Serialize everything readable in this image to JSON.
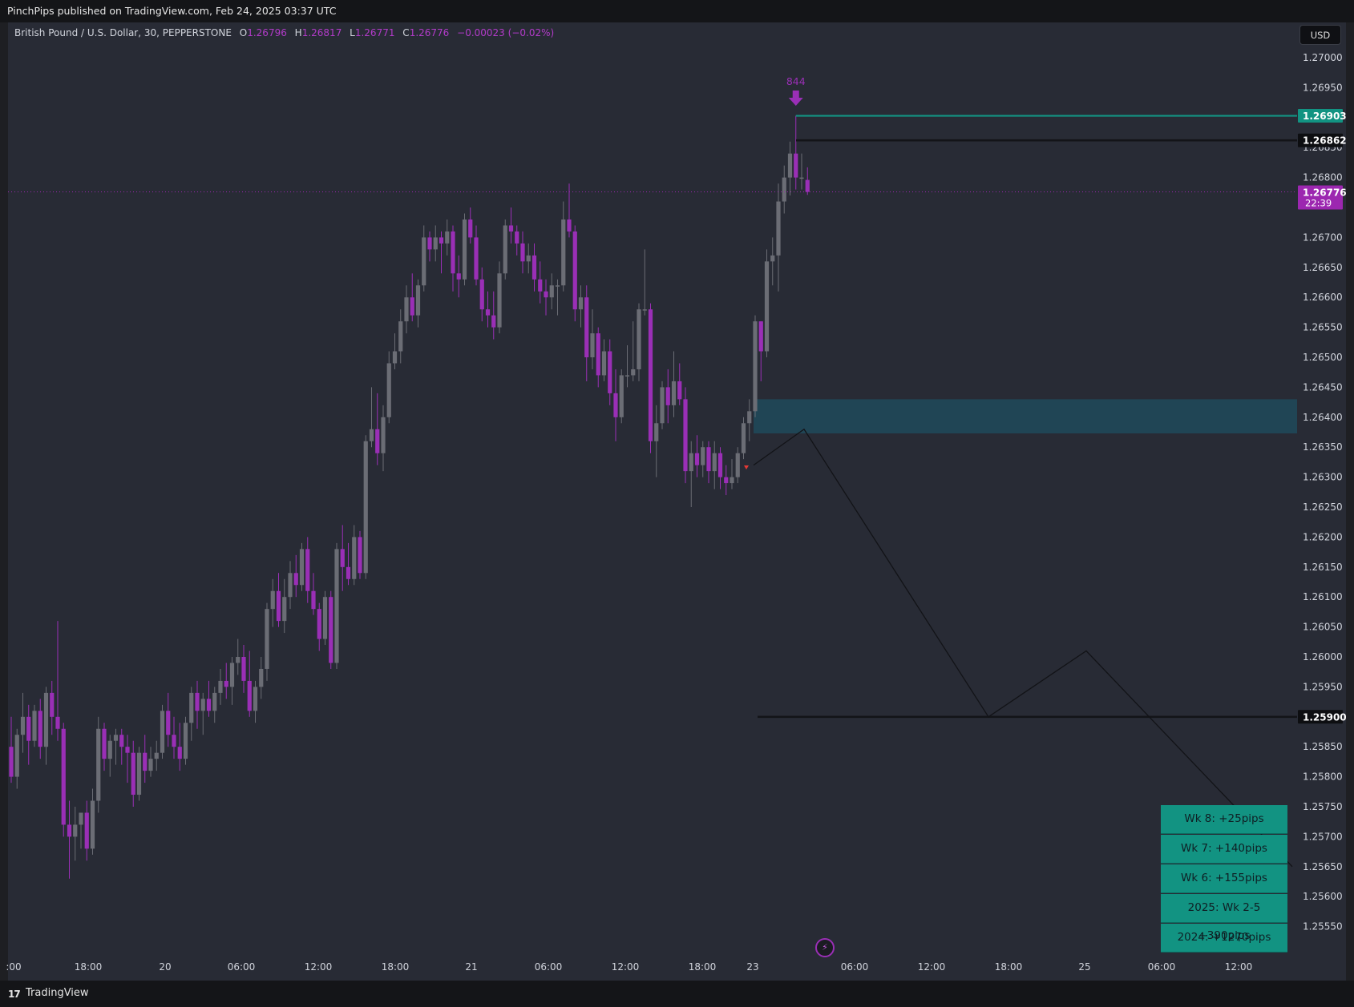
{
  "header": {
    "published": "PinchPips published on TradingView.com, Feb 24, 2025 03:37 UTC"
  },
  "symbol": {
    "name": "British Pound / U.S. Dollar, 30, PEPPERSTONE",
    "o_label": "O",
    "o": "1.26796",
    "h_label": "H",
    "h": "1.26817",
    "l_label": "L",
    "l": "1.26771",
    "c_label": "C",
    "c": "1.26776",
    "change": "−0.00023 (−0.02%)"
  },
  "currency_button": "USD",
  "footer": {
    "brand": "TradingView",
    "logo_glyph": "17"
  },
  "bolt_icon": "lightning-icon",
  "stats": [
    "Wk 8: +25pips",
    "Wk 7: +140pips",
    "Wk 6: +155pips",
    "2025: Wk 2-5  +390pips",
    "2024: +1270pips"
  ],
  "colors": {
    "bull": "#6b6d75",
    "bear": "#9a2fb6",
    "teal": "#129382",
    "zone": "#1f4a5a",
    "current": "#9c27b0",
    "level": "#131418",
    "background": "#282b35"
  },
  "chart_data": {
    "type": "candlestick",
    "ylim": [
      1.255,
      1.2715
    ],
    "y_ticks": [
      "1.27000",
      "1.26950",
      "1.26850",
      "1.26800",
      "1.26700",
      "1.26650",
      "1.26600",
      "1.26550",
      "1.26500",
      "1.26450",
      "1.26400",
      "1.26350",
      "1.26300",
      "1.26250",
      "1.26200",
      "1.26150",
      "1.26100",
      "1.26050",
      "1.26000",
      "1.25950",
      "1.25850",
      "1.25800",
      "1.25750",
      "1.25700",
      "1.25650",
      "1.25600",
      "1.25550"
    ],
    "x_ticks": [
      ":00",
      "18:00",
      "20",
      "06:00",
      "12:00",
      "18:00",
      "21",
      "06:00",
      "12:00",
      "18:00",
      "23",
      "06:00",
      "12:00",
      "18:00",
      "25",
      "06:00",
      "12:00"
    ],
    "price_labels": [
      {
        "value": 1.26903,
        "text": "1.26903",
        "style": "teal"
      },
      {
        "value": 1.26862,
        "text": "1.26862",
        "style": "dark"
      },
      {
        "value": 1.26776,
        "text": "1.26776",
        "sub": "22:39",
        "style": "current"
      },
      {
        "value": 1.259,
        "text": "1.25900",
        "style": "dark"
      }
    ],
    "marker_label": "844",
    "zone": {
      "top": 1.2643,
      "bottom": 1.26373
    },
    "projection": [
      1.2632,
      1.2638,
      1.259,
      1.2601,
      1.2565
    ],
    "candles": [
      [
        1.2585,
        1.259,
        1.2579,
        1.258
      ],
      [
        1.258,
        1.2588,
        1.2578,
        1.2587
      ],
      [
        1.2587,
        1.2594,
        1.2584,
        1.259
      ],
      [
        1.259,
        1.2592,
        1.2582,
        1.2586
      ],
      [
        1.2586,
        1.2592,
        1.2585,
        1.2591
      ],
      [
        1.2591,
        1.2593,
        1.2583,
        1.2585
      ],
      [
        1.2585,
        1.2595,
        1.2582,
        1.2594
      ],
      [
        1.2594,
        1.2596,
        1.2587,
        1.259
      ],
      [
        1.259,
        1.2606,
        1.2586,
        1.2588
      ],
      [
        1.2588,
        1.2589,
        1.257,
        1.2572
      ],
      [
        1.2572,
        1.2576,
        1.2563,
        1.257
      ],
      [
        1.257,
        1.2575,
        1.2566,
        1.2572
      ],
      [
        1.2572,
        1.2574,
        1.2568,
        1.2574
      ],
      [
        1.2574,
        1.2576,
        1.2566,
        1.2568
      ],
      [
        1.2568,
        1.2578,
        1.2567,
        1.2576
      ],
      [
        1.2576,
        1.259,
        1.2574,
        1.2588
      ],
      [
        1.2588,
        1.2589,
        1.2581,
        1.2583
      ],
      [
        1.2583,
        1.2587,
        1.258,
        1.2586
      ],
      [
        1.2586,
        1.2588,
        1.2582,
        1.2587
      ],
      [
        1.2587,
        1.2588,
        1.2582,
        1.2585
      ],
      [
        1.2585,
        1.2587,
        1.2579,
        1.2584
      ],
      [
        1.2584,
        1.2586,
        1.2575,
        1.2577
      ],
      [
        1.2577,
        1.2585,
        1.2576,
        1.2584
      ],
      [
        1.2584,
        1.2587,
        1.2579,
        1.2581
      ],
      [
        1.2581,
        1.2585,
        1.258,
        1.2583
      ],
      [
        1.2583,
        1.2586,
        1.2581,
        1.2584
      ],
      [
        1.2584,
        1.2592,
        1.2583,
        1.2591
      ],
      [
        1.2591,
        1.2594,
        1.2585,
        1.2587
      ],
      [
        1.2587,
        1.259,
        1.2583,
        1.2585
      ],
      [
        1.2585,
        1.2589,
        1.2581,
        1.2583
      ],
      [
        1.2583,
        1.259,
        1.2582,
        1.2589
      ],
      [
        1.2589,
        1.2595,
        1.2586,
        1.2594
      ],
      [
        1.2594,
        1.2596,
        1.2588,
        1.2591
      ],
      [
        1.2591,
        1.2594,
        1.2587,
        1.2593
      ],
      [
        1.2593,
        1.2596,
        1.259,
        1.2591
      ],
      [
        1.2591,
        1.2595,
        1.2589,
        1.2594
      ],
      [
        1.2594,
        1.2598,
        1.2592,
        1.2596
      ],
      [
        1.2596,
        1.2599,
        1.2593,
        1.2595
      ],
      [
        1.2595,
        1.26,
        1.2592,
        1.2599
      ],
      [
        1.2599,
        1.2603,
        1.2597,
        1.26
      ],
      [
        1.26,
        1.2602,
        1.2594,
        1.2596
      ],
      [
        1.2596,
        1.2601,
        1.259,
        1.2591
      ],
      [
        1.2591,
        1.2596,
        1.2589,
        1.2595
      ],
      [
        1.2595,
        1.26,
        1.2593,
        1.2598
      ],
      [
        1.2598,
        1.2609,
        1.2596,
        1.2608
      ],
      [
        1.2608,
        1.2613,
        1.2605,
        1.2611
      ],
      [
        1.2611,
        1.2614,
        1.2605,
        1.2606
      ],
      [
        1.2606,
        1.2613,
        1.2604,
        1.261
      ],
      [
        1.261,
        1.2616,
        1.2608,
        1.2614
      ],
      [
        1.2614,
        1.2617,
        1.261,
        1.2612
      ],
      [
        1.2612,
        1.2619,
        1.2611,
        1.2618
      ],
      [
        1.2618,
        1.262,
        1.2609,
        1.2611
      ],
      [
        1.2611,
        1.2614,
        1.2607,
        1.2608
      ],
      [
        1.2608,
        1.2609,
        1.2601,
        1.2603
      ],
      [
        1.2603,
        1.2611,
        1.2602,
        1.261
      ],
      [
        1.261,
        1.2611,
        1.2598,
        1.2599
      ],
      [
        1.2599,
        1.2619,
        1.2598,
        1.2618
      ],
      [
        1.2618,
        1.2622,
        1.2611,
        1.2615
      ],
      [
        1.2615,
        1.2619,
        1.2612,
        1.2613
      ],
      [
        1.2613,
        1.2622,
        1.2612,
        1.262
      ],
      [
        1.262,
        1.2621,
        1.2613,
        1.2614
      ],
      [
        1.2614,
        1.2637,
        1.2613,
        1.2636
      ],
      [
        1.2636,
        1.2645,
        1.2635,
        1.2638
      ],
      [
        1.2638,
        1.2644,
        1.2632,
        1.2634
      ],
      [
        1.2634,
        1.2642,
        1.2631,
        1.264
      ],
      [
        1.264,
        1.2651,
        1.2639,
        1.2649
      ],
      [
        1.2649,
        1.2654,
        1.2648,
        1.2651
      ],
      [
        1.2651,
        1.2658,
        1.2649,
        1.2656
      ],
      [
        1.2656,
        1.2662,
        1.2654,
        1.266
      ],
      [
        1.266,
        1.2664,
        1.2656,
        1.2657
      ],
      [
        1.2657,
        1.2663,
        1.2655,
        1.2662
      ],
      [
        1.2662,
        1.2672,
        1.2661,
        1.267
      ],
      [
        1.267,
        1.2671,
        1.2666,
        1.2668
      ],
      [
        1.2668,
        1.2672,
        1.2666,
        1.267
      ],
      [
        1.267,
        1.2671,
        1.2664,
        1.2669
      ],
      [
        1.2669,
        1.2673,
        1.2667,
        1.2671
      ],
      [
        1.2671,
        1.2672,
        1.2661,
        1.2664
      ],
      [
        1.2664,
        1.2667,
        1.266,
        1.2663
      ],
      [
        1.2663,
        1.2674,
        1.2662,
        1.2673
      ],
      [
        1.2673,
        1.2675,
        1.2669,
        1.267
      ],
      [
        1.267,
        1.2672,
        1.2662,
        1.2663
      ],
      [
        1.2663,
        1.2665,
        1.2656,
        1.2658
      ],
      [
        1.2658,
        1.2661,
        1.2655,
        1.2657
      ],
      [
        1.2657,
        1.2661,
        1.2653,
        1.2655
      ],
      [
        1.2655,
        1.2666,
        1.2654,
        1.2664
      ],
      [
        1.2664,
        1.2673,
        1.2663,
        1.2672
      ],
      [
        1.2672,
        1.2675,
        1.2669,
        1.2671
      ],
      [
        1.2671,
        1.2672,
        1.2667,
        1.2669
      ],
      [
        1.2669,
        1.2671,
        1.2664,
        1.2666
      ],
      [
        1.2666,
        1.2669,
        1.2664,
        1.2667
      ],
      [
        1.2667,
        1.2669,
        1.2661,
        1.2663
      ],
      [
        1.2663,
        1.2666,
        1.2659,
        1.2661
      ],
      [
        1.2661,
        1.2663,
        1.2657,
        1.266
      ],
      [
        1.266,
        1.2664,
        1.2658,
        1.2662
      ],
      [
        1.2662,
        1.2663,
        1.2657,
        1.2662
      ],
      [
        1.2662,
        1.2676,
        1.2661,
        1.2673
      ],
      [
        1.2673,
        1.2679,
        1.267,
        1.2671
      ],
      [
        1.2671,
        1.2672,
        1.2656,
        1.2658
      ],
      [
        1.2658,
        1.2662,
        1.2655,
        1.266
      ],
      [
        1.266,
        1.2662,
        1.2646,
        1.265
      ],
      [
        1.265,
        1.2658,
        1.2648,
        1.2654
      ],
      [
        1.2654,
        1.2655,
        1.2645,
        1.2647
      ],
      [
        1.2647,
        1.2653,
        1.2646,
        1.2651
      ],
      [
        1.2651,
        1.2653,
        1.2642,
        1.2644
      ],
      [
        1.2644,
        1.2648,
        1.2636,
        1.264
      ],
      [
        1.264,
        1.2648,
        1.2639,
        1.2647
      ],
      [
        1.2647,
        1.2652,
        1.2645,
        1.2647
      ],
      [
        1.2647,
        1.2656,
        1.2646,
        1.2648
      ],
      [
        1.2648,
        1.2659,
        1.2646,
        1.2658
      ],
      [
        1.2658,
        1.2668,
        1.2657,
        1.2658
      ],
      [
        1.2658,
        1.2659,
        1.2634,
        1.2636
      ],
      [
        1.2636,
        1.2642,
        1.263,
        1.2639
      ],
      [
        1.2639,
        1.2646,
        1.2638,
        1.2645
      ],
      [
        1.2645,
        1.2648,
        1.2639,
        1.2642
      ],
      [
        1.2642,
        1.2651,
        1.264,
        1.2646
      ],
      [
        1.2646,
        1.2649,
        1.2642,
        1.2643
      ],
      [
        1.2643,
        1.2645,
        1.2629,
        1.2631
      ],
      [
        1.2631,
        1.2636,
        1.2625,
        1.2634
      ],
      [
        1.2634,
        1.2637,
        1.263,
        1.2632
      ],
      [
        1.2632,
        1.2636,
        1.263,
        1.2635
      ],
      [
        1.2635,
        1.2636,
        1.2629,
        1.2631
      ],
      [
        1.2631,
        1.2636,
        1.2628,
        1.2634
      ],
      [
        1.2634,
        1.2635,
        1.2628,
        1.263
      ],
      [
        1.263,
        1.2632,
        1.2627,
        1.2629
      ],
      [
        1.2629,
        1.2633,
        1.2628,
        1.263
      ],
      [
        1.263,
        1.2635,
        1.2629,
        1.2634
      ],
      [
        1.2634,
        1.264,
        1.2633,
        1.2639
      ],
      [
        1.2639,
        1.2643,
        1.2636,
        1.2641
      ],
      [
        1.2641,
        1.2657,
        1.264,
        1.2656
      ],
      [
        1.2656,
        1.2656,
        1.2646,
        1.2651
      ],
      [
        1.2651,
        1.2668,
        1.265,
        1.2666
      ],
      [
        1.2666,
        1.267,
        1.2662,
        1.2667
      ],
      [
        1.2667,
        1.2679,
        1.2661,
        1.2676
      ],
      [
        1.2676,
        1.2682,
        1.2674,
        1.268
      ],
      [
        1.268,
        1.2686,
        1.2677,
        1.2684
      ],
      [
        1.2684,
        1.26903,
        1.2678,
        1.268
      ],
      [
        1.268,
        1.2684,
        1.2678,
        1.268
      ],
      [
        1.26796,
        1.26817,
        1.26771,
        1.26776
      ]
    ]
  }
}
